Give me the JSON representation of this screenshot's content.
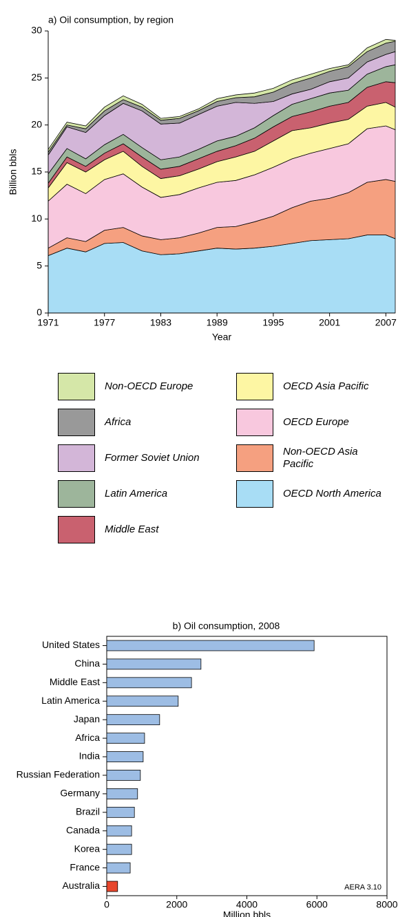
{
  "chart_data": [
    {
      "type": "stacked-area",
      "title": "a) Oil consumption, by region",
      "x_label": "Year",
      "y_label": "Billion bbls",
      "x": [
        1971,
        1973,
        1975,
        1977,
        1979,
        1981,
        1983,
        1985,
        1987,
        1989,
        1991,
        1993,
        1995,
        1997,
        1999,
        2001,
        2003,
        2005,
        2007,
        2008
      ],
      "xlim": [
        1971,
        2008
      ],
      "xticks": [
        1971,
        1977,
        1983,
        1989,
        1995,
        2001,
        2007
      ],
      "ylim": [
        0,
        30
      ],
      "yticks": [
        0,
        5,
        10,
        15,
        20,
        25,
        30
      ],
      "series": [
        {
          "name": "OECD North America",
          "color": "#a8ddf5",
          "values": [
            6.1,
            6.9,
            6.5,
            7.4,
            7.5,
            6.6,
            6.2,
            6.3,
            6.6,
            6.9,
            6.8,
            6.9,
            7.1,
            7.4,
            7.7,
            7.8,
            7.9,
            8.3,
            8.3,
            7.9
          ]
        },
        {
          "name": "Non-OECD Asia Pacific",
          "color": "#f5a080",
          "values": [
            0.8,
            1.1,
            1.1,
            1.4,
            1.6,
            1.6,
            1.6,
            1.7,
            1.9,
            2.2,
            2.4,
            2.8,
            3.2,
            3.8,
            4.2,
            4.4,
            4.9,
            5.6,
            5.9,
            6.1
          ]
        },
        {
          "name": "OECD Europe",
          "color": "#f8c8de",
          "values": [
            5.0,
            5.7,
            5.1,
            5.4,
            5.7,
            5.2,
            4.5,
            4.6,
            4.8,
            4.8,
            4.9,
            5.0,
            5.2,
            5.2,
            5.1,
            5.3,
            5.2,
            5.7,
            5.7,
            5.5
          ]
        },
        {
          "name": "OECD Asia Pacific",
          "color": "#fdf6a3",
          "values": [
            1.4,
            2.3,
            2.3,
            2.1,
            2.4,
            2.2,
            2.0,
            2.0,
            2.0,
            2.2,
            2.5,
            2.5,
            2.8,
            3.0,
            2.7,
            2.7,
            2.6,
            2.4,
            2.5,
            2.4
          ]
        },
        {
          "name": "Middle East",
          "color": "#c9616f",
          "values": [
            0.5,
            0.6,
            0.6,
            0.7,
            0.8,
            1.0,
            1.0,
            1.0,
            1.1,
            1.1,
            1.2,
            1.4,
            1.5,
            1.5,
            1.7,
            1.8,
            1.8,
            2.0,
            2.2,
            2.6
          ]
        },
        {
          "name": "Latin America",
          "color": "#9db59b",
          "values": [
            1.0,
            0.9,
            0.8,
            0.9,
            1.0,
            1.0,
            1.0,
            1.0,
            1.0,
            1.1,
            1.0,
            1.1,
            1.2,
            1.3,
            1.4,
            1.4,
            1.3,
            1.4,
            1.6,
            1.9
          ]
        },
        {
          "name": "Former Soviet Union",
          "color": "#d3b6d8",
          "values": [
            2.0,
            2.3,
            2.8,
            3.1,
            3.3,
            3.9,
            3.8,
            3.6,
            3.7,
            3.7,
            3.6,
            2.6,
            1.5,
            1.1,
            1.0,
            1.2,
            1.3,
            1.3,
            1.3,
            1.4
          ]
        },
        {
          "name": "Africa",
          "color": "#999999",
          "values": [
            0.3,
            0.2,
            0.4,
            0.5,
            0.4,
            0.4,
            0.4,
            0.5,
            0.4,
            0.5,
            0.5,
            0.7,
            1.0,
            1.1,
            1.2,
            1.1,
            1.2,
            1.1,
            1.2,
            1.1
          ]
        },
        {
          "name": "Non-OECD Europe",
          "color": "#d5e7a8",
          "values": [
            0.3,
            0.3,
            0.3,
            0.4,
            0.4,
            0.3,
            0.2,
            0.2,
            0.2,
            0.3,
            0.3,
            0.4,
            0.4,
            0.4,
            0.4,
            0.3,
            0.2,
            0.4,
            0.4,
            0.1
          ]
        }
      ]
    },
    {
      "type": "hbar",
      "title": "b) Oil consumption, 2008",
      "x_label": "Million bbls",
      "annotation": "AERA 3.10",
      "categories": [
        "United States",
        "China",
        "Middle East",
        "Latin America",
        "Japan",
        "Africa",
        "India",
        "Russian Federation",
        "Germany",
        "Brazil",
        "Canada",
        "Korea",
        "France",
        "Australia"
      ],
      "values": [
        5920,
        2690,
        2420,
        2040,
        1510,
        1080,
        1040,
        960,
        880,
        790,
        710,
        710,
        670,
        310
      ],
      "colors": [
        "#9dbde4",
        "#9dbde4",
        "#9dbde4",
        "#9dbde4",
        "#9dbde4",
        "#9dbde4",
        "#9dbde4",
        "#9dbde4",
        "#9dbde4",
        "#9dbde4",
        "#9dbde4",
        "#9dbde4",
        "#9dbde4",
        "#e8472d"
      ],
      "xlim": [
        0,
        8000
      ],
      "xticks": [
        0,
        2000,
        4000,
        6000,
        8000
      ]
    }
  ]
}
